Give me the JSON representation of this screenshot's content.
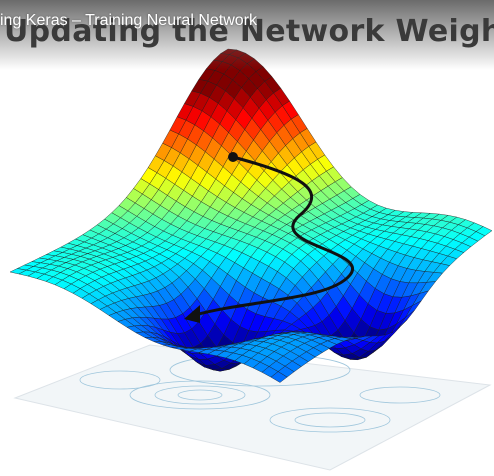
{
  "video_title": "ing Keras – Training Neural Network",
  "slide": {
    "heading": "Updating the Network Weights"
  }
}
